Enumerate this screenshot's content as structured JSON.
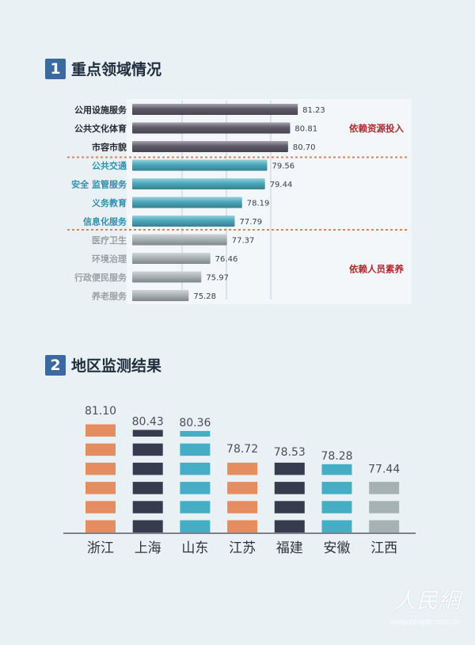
{
  "sections": [
    {
      "number": "1",
      "title": "重点领域情况"
    },
    {
      "number": "2",
      "title": "地区监测结果"
    }
  ],
  "chart_data": [
    {
      "type": "bar",
      "orientation": "horizontal",
      "categories": [
        "公用设施服务",
        "公共文化体育",
        "市容市貌",
        "公共交通",
        "安全 监管服务",
        "义务教育",
        "信息化服务",
        "医疗卫生",
        "环境治理",
        "行政便民服务",
        "养老服务"
      ],
      "values": [
        81.23,
        80.81,
        80.7,
        79.56,
        79.44,
        78.19,
        77.79,
        77.37,
        76.46,
        75.97,
        75.28
      ],
      "value_labels": [
        "81.23",
        "80.81",
        "80.70",
        "79.56",
        "79.44",
        "78.19",
        "77.79",
        "77.37",
        "76.46",
        "75.97",
        "75.28"
      ],
      "groups": [
        {
          "indices": [
            0,
            1,
            2
          ],
          "color": "#5e5a6a",
          "label_color": "#262a33",
          "annotation": "依赖资源投入"
        },
        {
          "indices": [
            3,
            4,
            5,
            6
          ],
          "color": "#4aa9bd",
          "label_color": "#2f8fb0",
          "annotation": ""
        },
        {
          "indices": [
            7,
            8,
            9,
            10
          ],
          "color": "#aab3b6",
          "label_color": "#9aa0a4",
          "annotation": "依赖人员素养"
        }
      ],
      "annotation_color": "#b2282d",
      "xlim": [
        72.2,
        82
      ]
    },
    {
      "type": "bar",
      "orientation": "vertical",
      "categories": [
        "浙江",
        "上海",
        "山东",
        "江苏",
        "福建",
        "安徽",
        "江西"
      ],
      "values": [
        81.1,
        80.43,
        80.36,
        78.72,
        78.53,
        78.28,
        77.44
      ],
      "value_labels": [
        "81.10",
        "80.43",
        "80.36",
        "78.72",
        "78.53",
        "78.28",
        "77.44"
      ],
      "colors": [
        "#e58d61",
        "#363b4d",
        "#45aec4",
        "#e58d61",
        "#363b4d",
        "#45aec4",
        "#a5b1b2"
      ],
      "ylim": [
        74,
        81.5
      ]
    }
  ],
  "watermark": {
    "text": "人民網",
    "url": "www.people.com.cn"
  }
}
